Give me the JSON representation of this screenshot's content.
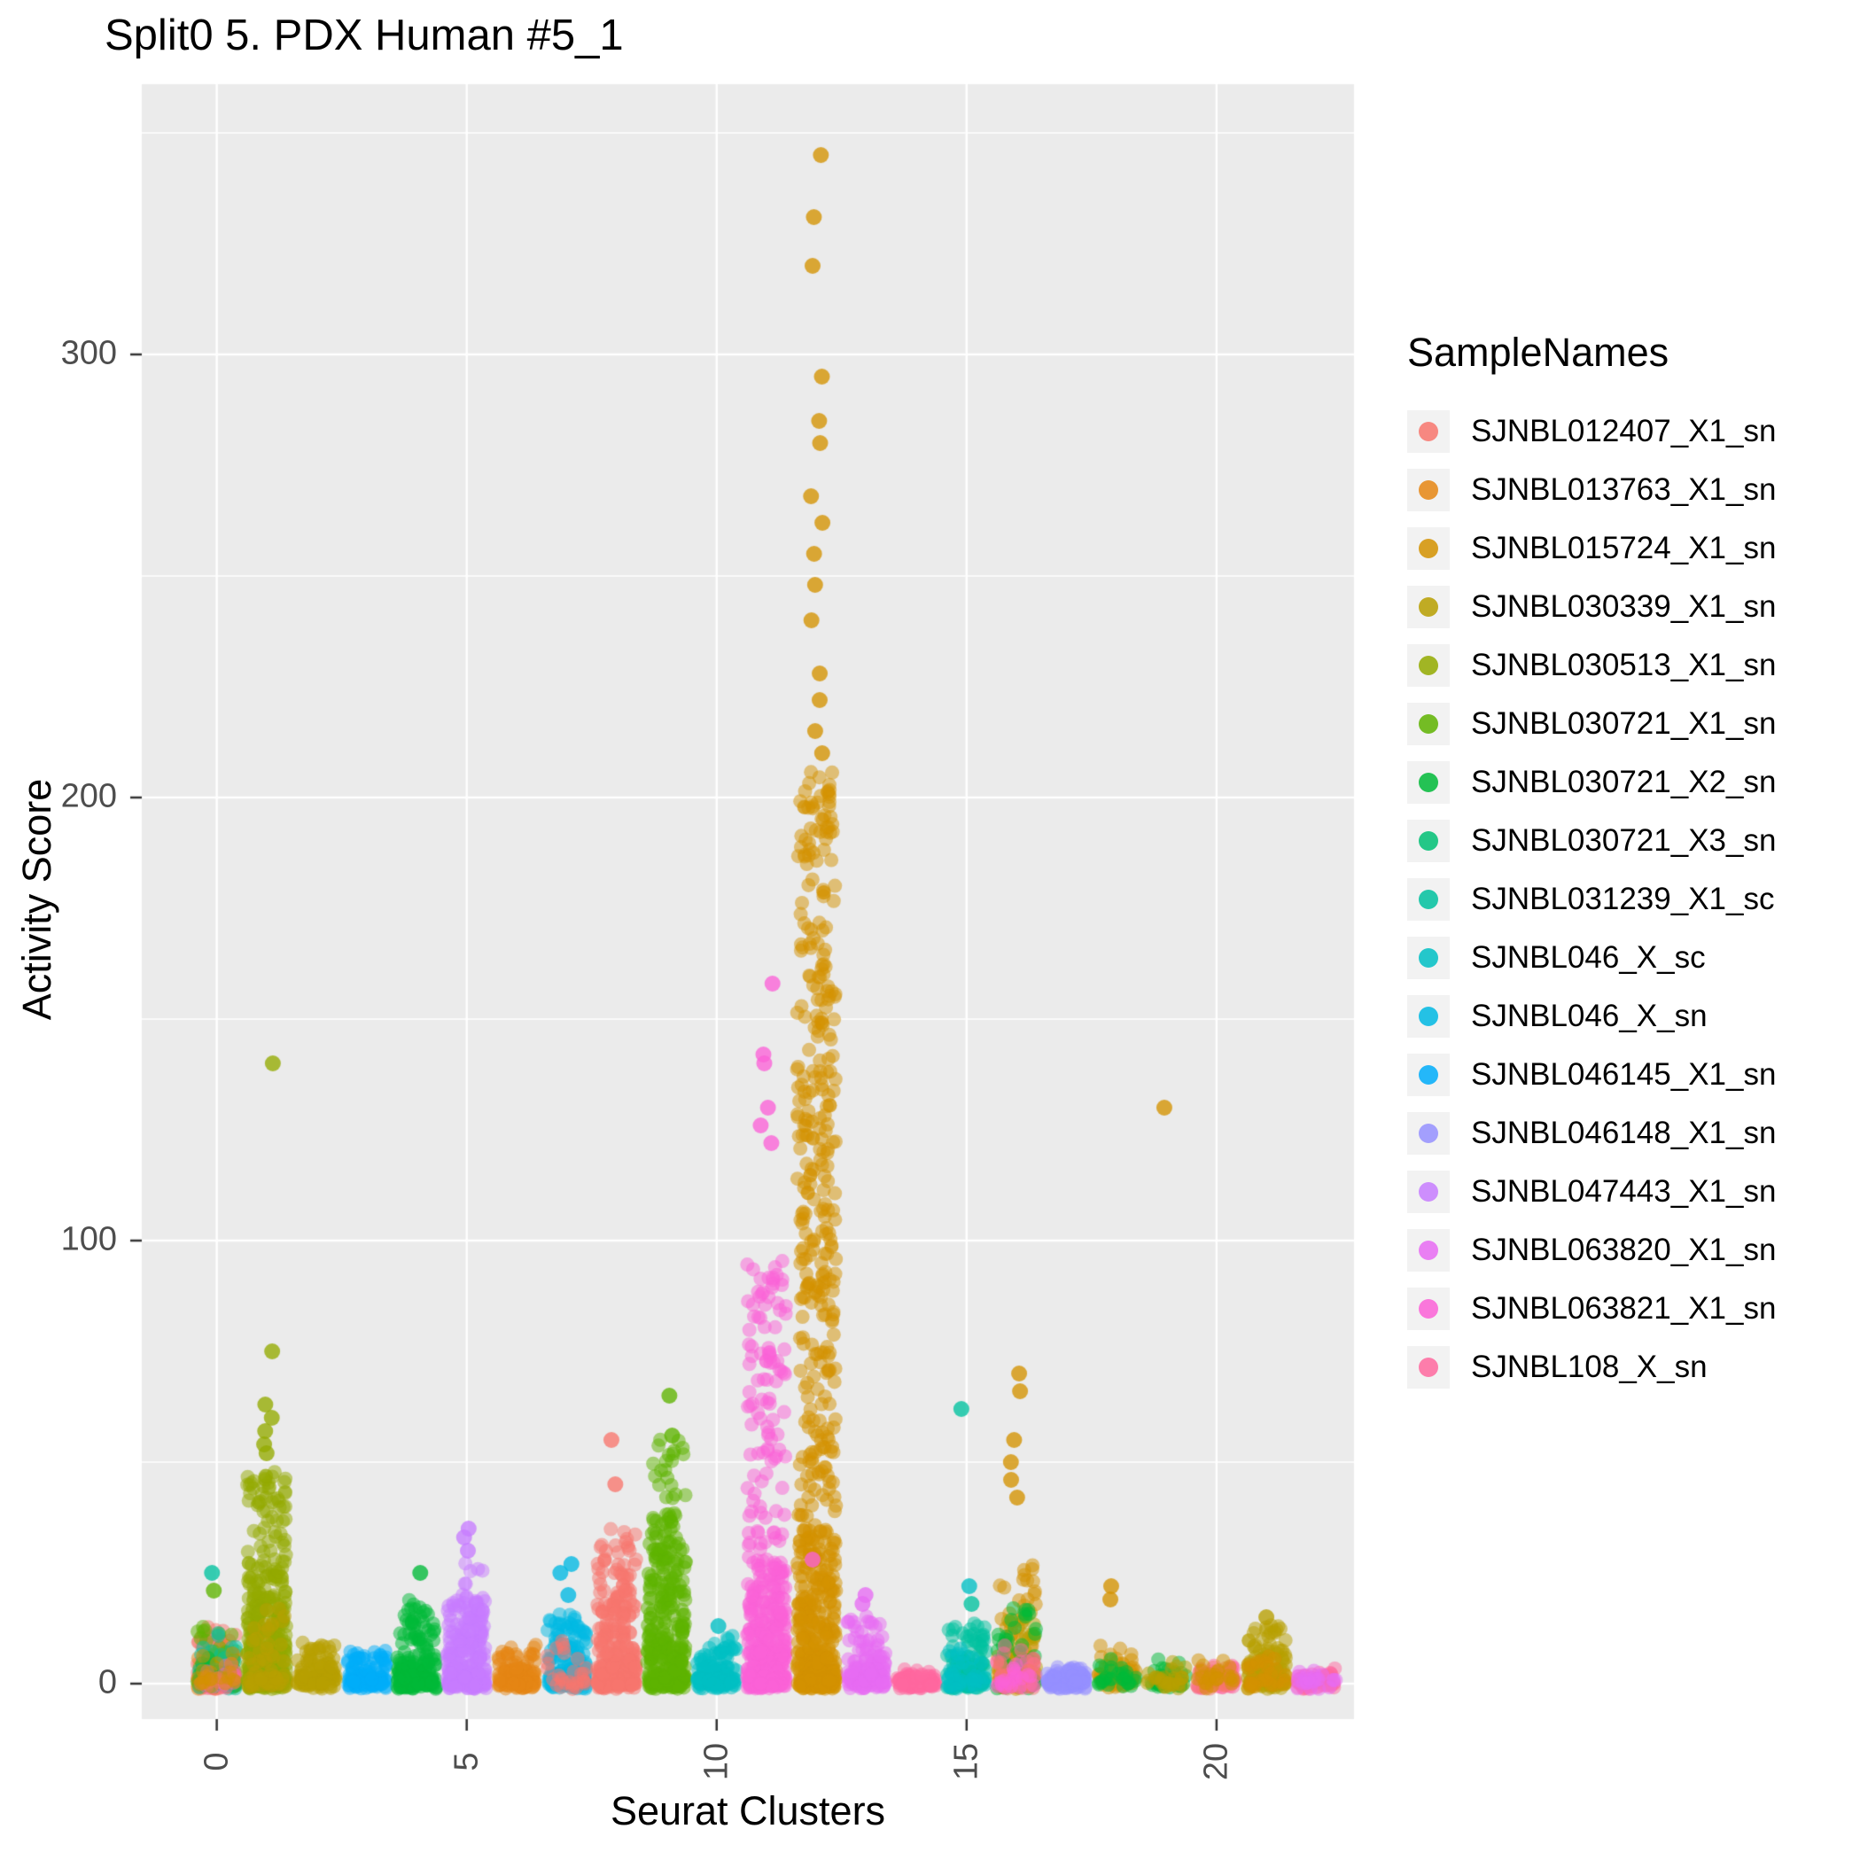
{
  "chart_data": {
    "type": "scatter",
    "title": "Split0 5. PDX Human #5_1",
    "xlabel": "Seurat Clusters",
    "ylabel": "Activity Score",
    "legend_title": "SampleNames",
    "x_ticks": [
      0,
      5,
      10,
      15,
      20
    ],
    "y_ticks": [
      0,
      100,
      200,
      300
    ],
    "xlim": [
      -1.5,
      22.75
    ],
    "ylim": [
      -8,
      361
    ],
    "grid": true,
    "legend_position": "right",
    "colors": {
      "panel_bg": "#EBEBEB",
      "grid_major": "#FFFFFF",
      "grid_minor": "#FFFFFF",
      "tick_text": "#4D4D4D",
      "tick_mark": "#333333",
      "legend_key_bg": "#F2F2F2"
    },
    "samples": [
      {
        "name": "SJNBL012407_X1_sn",
        "color": "#F8766D"
      },
      {
        "name": "SJNBL013763_X1_sn",
        "color": "#E68613"
      },
      {
        "name": "SJNBL015724_X1_sn",
        "color": "#D39200"
      },
      {
        "name": "SJNBL030339_X1_sn",
        "color": "#B79F00"
      },
      {
        "name": "SJNBL030513_X1_sn",
        "color": "#93AA00"
      },
      {
        "name": "SJNBL030721_X1_sn",
        "color": "#5EB300"
      },
      {
        "name": "SJNBL030721_X2_sn",
        "color": "#00BA38"
      },
      {
        "name": "SJNBL030721_X3_sn",
        "color": "#00BF74"
      },
      {
        "name": "SJNBL031239_X1_sc",
        "color": "#00C19F"
      },
      {
        "name": "SJNBL046_X_sc",
        "color": "#00BFC4"
      },
      {
        "name": "SJNBL046_X_sn",
        "color": "#00B9E3"
      },
      {
        "name": "SJNBL046145_X1_sn",
        "color": "#00ADFA"
      },
      {
        "name": "SJNBL046148_X1_sn",
        "color": "#9590FF"
      },
      {
        "name": "SJNBL047443_X1_sn",
        "color": "#C77CFF"
      },
      {
        "name": "SJNBL063820_X1_sn",
        "color": "#E76BF3"
      },
      {
        "name": "SJNBL063821_X1_sn",
        "color": "#FB61D7"
      },
      {
        "name": "SJNBL108_X_sn",
        "color": "#FF689F"
      }
    ],
    "groups_format": [
      "cluster",
      "sample",
      "n",
      "max",
      "dist"
    ],
    "groups": [
      [
        0,
        "SJNBL012407_X1_sn",
        140,
        12,
        "near0"
      ],
      [
        0,
        "SJNBL013763_X1_sn",
        50,
        8,
        "near0"
      ],
      [
        0,
        "SJNBL030721_X1_sn",
        60,
        14,
        "near0"
      ],
      [
        0,
        "SJNBL031239_X1_sc",
        40,
        12,
        "near0"
      ],
      [
        0,
        "SJNBL030721_X2_sn",
        30,
        8,
        "near0"
      ],
      [
        0,
        "SJNBL108_X_sn",
        25,
        4,
        "near0"
      ],
      [
        0,
        "SJNBL015724_X1_sn",
        20,
        6,
        "near0"
      ],
      [
        1,
        "SJNBL030513_X1_sn",
        300,
        28,
        "near0"
      ],
      [
        1,
        "SJNBL030513_X1_sn",
        130,
        48,
        "spread"
      ],
      [
        1,
        "SJNBL030339_X1_sn",
        60,
        18,
        "near0"
      ],
      [
        2,
        "SJNBL030339_X1_sn",
        120,
        9,
        "near0"
      ],
      [
        3,
        "SJNBL046145_X1_sn",
        110,
        7,
        "near0"
      ],
      [
        4,
        "SJNBL030721_X2_sn",
        210,
        18,
        "near0"
      ],
      [
        5,
        "SJNBL047443_X1_sn",
        240,
        20,
        "near0"
      ],
      [
        5,
        "SJNBL047443_X1_sn",
        40,
        27,
        "spread"
      ],
      [
        6,
        "SJNBL013763_X1_sn",
        120,
        8,
        "near0"
      ],
      [
        7,
        "SJNBL046_X_sn",
        170,
        15,
        "near0"
      ],
      [
        7,
        "SJNBL012407_X1_sn",
        30,
        10,
        "near0"
      ],
      [
        8,
        "SJNBL012407_X1_sn",
        280,
        32,
        "near0"
      ],
      [
        8,
        "SJNBL012407_X1_sn",
        40,
        36,
        "spread"
      ],
      [
        9,
        "SJNBL030721_X1_sn",
        280,
        40,
        "near0"
      ],
      [
        9,
        "SJNBL030721_X1_sn",
        70,
        55,
        "spread"
      ],
      [
        10,
        "SJNBL046_X_sc",
        150,
        10,
        "near0"
      ],
      [
        11,
        "SJNBL063821_X1_sn",
        300,
        28,
        "near0"
      ],
      [
        11,
        "SJNBL063821_X1_sn",
        170,
        95,
        "spread"
      ],
      [
        12,
        "SJNBL015724_X1_sn",
        350,
        35,
        "near0"
      ],
      [
        12,
        "SJNBL015724_X1_sn",
        380,
        205,
        "spread"
      ],
      [
        13,
        "SJNBL063820_X1_sn",
        140,
        15,
        "near0"
      ],
      [
        14,
        "SJNBL108_X_sn",
        100,
        2.5,
        "near0"
      ],
      [
        15,
        "SJNBL031239_X1_sc",
        130,
        14,
        "near0"
      ],
      [
        15,
        "SJNBL046_X_sc",
        40,
        8,
        "near0"
      ],
      [
        16,
        "SJNBL015724_X1_sn",
        90,
        28,
        "near0"
      ],
      [
        16,
        "SJNBL030339_X1_sn",
        60,
        15,
        "near0"
      ],
      [
        16,
        "SJNBL030721_X2_sn",
        50,
        18,
        "near0"
      ],
      [
        16,
        "SJNBL108_X_sn",
        30,
        8,
        "near0"
      ],
      [
        16,
        "SJNBL012407_X1_sn",
        25,
        6,
        "near0"
      ],
      [
        16,
        "SJNBL063821_X1_sn",
        20,
        6,
        "near0"
      ],
      [
        17,
        "SJNBL046148_X1_sn",
        120,
        3.5,
        "near0"
      ],
      [
        18,
        "SJNBL015724_X1_sn",
        60,
        8,
        "near0"
      ],
      [
        18,
        "SJNBL030721_X2_sn",
        30,
        5,
        "near0"
      ],
      [
        19,
        "SJNBL030721_X2_sn",
        40,
        5,
        "near0"
      ],
      [
        19,
        "SJNBL030339_X1_sn",
        30,
        4,
        "near0"
      ],
      [
        20,
        "SJNBL108_X_sn",
        40,
        4,
        "near0"
      ],
      [
        20,
        "SJNBL012407_X1_sn",
        30,
        4,
        "near0"
      ],
      [
        20,
        "SJNBL015724_X1_sn",
        25,
        5,
        "near0"
      ],
      [
        21,
        "SJNBL030339_X1_sn",
        130,
        13,
        "near0"
      ],
      [
        21,
        "SJNBL015724_X1_sn",
        30,
        8,
        "near0"
      ],
      [
        22,
        "SJNBL108_X_sn",
        60,
        2.5,
        "near0"
      ],
      [
        22,
        "SJNBL063820_X1_sn",
        25,
        2,
        "near0"
      ]
    ],
    "outliers_format": [
      "cluster",
      "sample",
      "y"
    ],
    "outliers": [
      [
        0,
        "SJNBL031239_X1_sc",
        25
      ],
      [
        0,
        "SJNBL030721_X1_sn",
        21
      ],
      [
        1,
        "SJNBL030513_X1_sn",
        140
      ],
      [
        1,
        "SJNBL030513_X1_sn",
        75
      ],
      [
        1,
        "SJNBL030513_X1_sn",
        63
      ],
      [
        1,
        "SJNBL030513_X1_sn",
        60
      ],
      [
        1,
        "SJNBL030513_X1_sn",
        57
      ],
      [
        1,
        "SJNBL030513_X1_sn",
        54
      ],
      [
        1,
        "SJNBL030513_X1_sn",
        52
      ],
      [
        4,
        "SJNBL030721_X2_sn",
        25
      ],
      [
        5,
        "SJNBL047443_X1_sn",
        35
      ],
      [
        5,
        "SJNBL047443_X1_sn",
        33
      ],
      [
        5,
        "SJNBL047443_X1_sn",
        30
      ],
      [
        7,
        "SJNBL046_X_sn",
        27
      ],
      [
        7,
        "SJNBL046_X_sn",
        25
      ],
      [
        7,
        "SJNBL046_X_sn",
        20
      ],
      [
        8,
        "SJNBL012407_X1_sn",
        55
      ],
      [
        8,
        "SJNBL012407_X1_sn",
        45
      ],
      [
        9,
        "SJNBL030721_X1_sn",
        65
      ],
      [
        9,
        "SJNBL030721_X1_sn",
        56
      ],
      [
        10,
        "SJNBL046_X_sc",
        13
      ],
      [
        11,
        "SJNBL063821_X1_sn",
        158
      ],
      [
        11,
        "SJNBL063821_X1_sn",
        142
      ],
      [
        11,
        "SJNBL063821_X1_sn",
        140
      ],
      [
        11,
        "SJNBL063821_X1_sn",
        130
      ],
      [
        11,
        "SJNBL063821_X1_sn",
        126
      ],
      [
        11,
        "SJNBL063821_X1_sn",
        122
      ],
      [
        12,
        "SJNBL015724_X1_sn",
        345
      ],
      [
        12,
        "SJNBL015724_X1_sn",
        331
      ],
      [
        12,
        "SJNBL015724_X1_sn",
        320
      ],
      [
        12,
        "SJNBL015724_X1_sn",
        295
      ],
      [
        12,
        "SJNBL015724_X1_sn",
        285
      ],
      [
        12,
        "SJNBL015724_X1_sn",
        280
      ],
      [
        12,
        "SJNBL015724_X1_sn",
        268
      ],
      [
        12,
        "SJNBL015724_X1_sn",
        262
      ],
      [
        12,
        "SJNBL015724_X1_sn",
        255
      ],
      [
        12,
        "SJNBL015724_X1_sn",
        248
      ],
      [
        12,
        "SJNBL015724_X1_sn",
        240
      ],
      [
        12,
        "SJNBL015724_X1_sn",
        228
      ],
      [
        12,
        "SJNBL015724_X1_sn",
        222
      ],
      [
        12,
        "SJNBL015724_X1_sn",
        215
      ],
      [
        12,
        "SJNBL015724_X1_sn",
        210
      ],
      [
        12,
        "SJNBL063821_X1_sn",
        28
      ],
      [
        13,
        "SJNBL063820_X1_sn",
        20
      ],
      [
        13,
        "SJNBL063820_X1_sn",
        18
      ],
      [
        15,
        "SJNBL031239_X1_sc",
        62
      ],
      [
        15,
        "SJNBL046_X_sc",
        22
      ],
      [
        15,
        "SJNBL031239_X1_sc",
        18
      ],
      [
        16,
        "SJNBL015724_X1_sn",
        70
      ],
      [
        16,
        "SJNBL015724_X1_sn",
        66
      ],
      [
        16,
        "SJNBL015724_X1_sn",
        55
      ],
      [
        16,
        "SJNBL015724_X1_sn",
        50
      ],
      [
        16,
        "SJNBL015724_X1_sn",
        46
      ],
      [
        16,
        "SJNBL015724_X1_sn",
        42
      ],
      [
        18,
        "SJNBL015724_X1_sn",
        22
      ],
      [
        18,
        "SJNBL015724_X1_sn",
        19
      ],
      [
        19,
        "SJNBL015724_X1_sn",
        130
      ],
      [
        21,
        "SJNBL030339_X1_sn",
        15
      ]
    ]
  }
}
